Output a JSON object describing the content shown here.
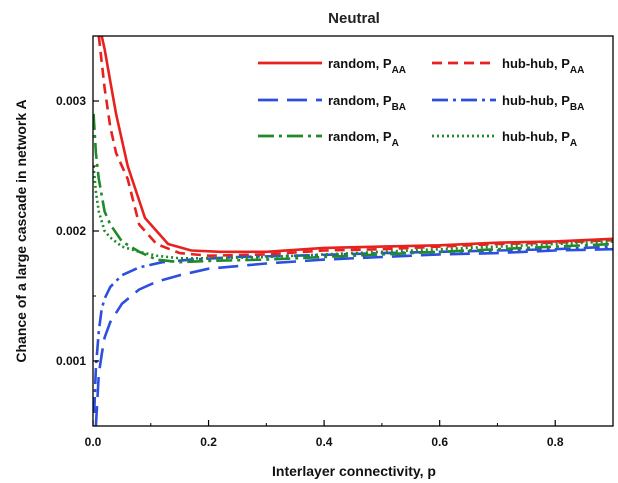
{
  "chart_data": {
    "type": "line",
    "title": "Neutral",
    "xlabel": "Interlayer connectivity, p",
    "ylabel": "Chance of a large cascade in network A",
    "xlim": [
      0,
      0.9
    ],
    "ylim": [
      0.0005,
      0.0035
    ],
    "xticks": [
      0,
      0.2,
      0.4,
      0.6,
      0.8
    ],
    "xtick_labels": [
      "0.0",
      "0.2",
      "0.4",
      "0.6",
      "0.8"
    ],
    "yticks": [
      0.001,
      0.002,
      0.003
    ],
    "ytick_labels": [
      "0.001",
      "0.002",
      "0.003"
    ],
    "grid": false,
    "legend_position": "top-right",
    "series": [
      {
        "name": "random, P_AA",
        "label_main": "random, P",
        "label_sub": "AA",
        "color": "#e8201e",
        "dash": "solid",
        "x": [
          0.01,
          0.02,
          0.03,
          0.04,
          0.06,
          0.09,
          0.13,
          0.17,
          0.22,
          0.3,
          0.4,
          0.5,
          0.6,
          0.7,
          0.8,
          0.9
        ],
        "y": [
          0.0036,
          0.0034,
          0.00315,
          0.0029,
          0.0025,
          0.0021,
          0.0019,
          0.00185,
          0.00184,
          0.00184,
          0.00187,
          0.00188,
          0.00189,
          0.00191,
          0.00192,
          0.00194
        ]
      },
      {
        "name": "hub-hub, P_AA",
        "label_main": "hub-hub, P",
        "label_sub": "AA",
        "color": "#e8201e",
        "dash": "dashed",
        "x": [
          0.01,
          0.02,
          0.03,
          0.04,
          0.06,
          0.08,
          0.11,
          0.15,
          0.2,
          0.3,
          0.4,
          0.5,
          0.6,
          0.7,
          0.8,
          0.9
        ],
        "y": [
          0.0035,
          0.0031,
          0.0028,
          0.0026,
          0.0024,
          0.00205,
          0.0019,
          0.00183,
          0.00181,
          0.00182,
          0.00185,
          0.00186,
          0.00188,
          0.0019,
          0.00191,
          0.00193
        ]
      },
      {
        "name": "random, P_BA",
        "label_main": "random, P",
        "label_sub": "BA",
        "color": "#2c4fe0",
        "dash": "longdash",
        "x": [
          0.005,
          0.01,
          0.015,
          0.02,
          0.03,
          0.05,
          0.08,
          0.11,
          0.15,
          0.2,
          0.3,
          0.4,
          0.5,
          0.6,
          0.7,
          0.8,
          0.9
        ],
        "y": [
          0.0005,
          0.0009,
          0.00105,
          0.00118,
          0.0013,
          0.00144,
          0.00155,
          0.00161,
          0.00166,
          0.00171,
          0.00175,
          0.00178,
          0.0018,
          0.00182,
          0.00183,
          0.00185,
          0.00186
        ]
      },
      {
        "name": "hub-hub, P_BA",
        "label_main": "hub-hub, P",
        "label_sub": "BA",
        "color": "#2c4fe0",
        "dash": "dashdot",
        "x": [
          0.002,
          0.005,
          0.01,
          0.015,
          0.02,
          0.03,
          0.05,
          0.08,
          0.12,
          0.17,
          0.25,
          0.35,
          0.5,
          0.6,
          0.7,
          0.8,
          0.9
        ],
        "y": [
          0.0006,
          0.00095,
          0.00123,
          0.0014,
          0.00148,
          0.00157,
          0.00166,
          0.00172,
          0.00176,
          0.00178,
          0.0018,
          0.00181,
          0.00183,
          0.00184,
          0.00185,
          0.00186,
          0.00188
        ]
      },
      {
        "name": "random, P_A",
        "label_main": "random, P",
        "label_sub": "A",
        "color": "#208a28",
        "dash": "dashdot",
        "x": [
          0.001,
          0.005,
          0.01,
          0.02,
          0.03,
          0.05,
          0.08,
          0.11,
          0.15,
          0.2,
          0.3,
          0.4,
          0.5,
          0.6,
          0.7,
          0.8,
          0.9
        ],
        "y": [
          0.0029,
          0.0026,
          0.0024,
          0.00215,
          0.00205,
          0.00192,
          0.00184,
          0.00178,
          0.00176,
          0.00177,
          0.00178,
          0.0018,
          0.00182,
          0.00184,
          0.00186,
          0.00188,
          0.0019
        ]
      },
      {
        "name": "hub-hub, P_A",
        "label_main": "hub-hub, P",
        "label_sub": "A",
        "color": "#208a28",
        "dash": "dotted",
        "x": [
          0.001,
          0.005,
          0.01,
          0.02,
          0.03,
          0.05,
          0.08,
          0.11,
          0.15,
          0.2,
          0.3,
          0.4,
          0.5,
          0.6,
          0.7,
          0.8,
          0.9
        ],
        "y": [
          0.0025,
          0.0023,
          0.00215,
          0.002,
          0.00195,
          0.00188,
          0.00184,
          0.00181,
          0.00179,
          0.00179,
          0.0018,
          0.00182,
          0.00184,
          0.00186,
          0.00188,
          0.0019,
          0.00192
        ]
      }
    ]
  }
}
